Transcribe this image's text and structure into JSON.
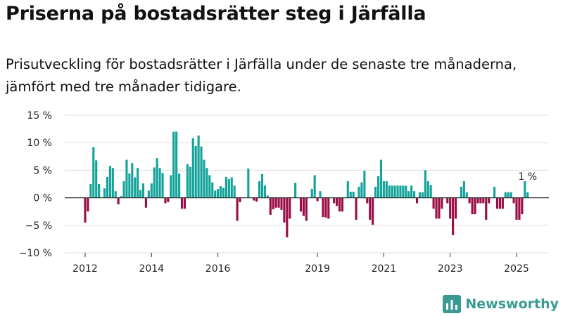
{
  "header": {
    "title": "Priserna på bostadsrätter steg i Järfälla",
    "subtitle": "Prisutveckling för bostadsrätter i Järfälla under de senaste tre månaderna, jämfört med tre månader tidigare."
  },
  "brand": {
    "name": "Newsworthy",
    "color": "#3b9b92",
    "icon": "bar-chart-icon"
  },
  "chart_data": {
    "type": "bar",
    "title": "",
    "xlabel": "",
    "ylabel": "",
    "x_unit": "month",
    "start_month": "2011-11",
    "ylim": [
      -10,
      15
    ],
    "yticks": [
      -10,
      -5,
      0,
      5,
      10,
      15
    ],
    "ytick_labels": [
      "−10 %",
      "−5 %",
      "0 %",
      "5 %",
      "10 %",
      "15 %"
    ],
    "xtick_labels": [
      "2012",
      "2014",
      "2016",
      "2019",
      "2021",
      "2023",
      "2025"
    ],
    "xtick_months": [
      "2012-01",
      "2014-01",
      "2016-01",
      "2019-01",
      "2021-01",
      "2023-01",
      "2025-01"
    ],
    "positive_color": "#14a39a",
    "negative_color": "#9b0d46",
    "grid": true,
    "annotation": {
      "text": "1 %",
      "month": "2025-05",
      "value": 1
    },
    "values": [
      0,
      0,
      -4.5,
      -2.5,
      2.5,
      9.2,
      6.8,
      2.5,
      0,
      1.7,
      3.8,
      5.8,
      5.4,
      1.2,
      -1.2,
      0.3,
      3,
      6.9,
      4.4,
      6.3,
      3.7,
      5.4,
      1.4,
      2.6,
      -1.8,
      1.3,
      2.6,
      5.5,
      7.2,
      5.4,
      4.5,
      -1,
      -0.8,
      4.1,
      12,
      12,
      4.4,
      -2,
      -2,
      6.1,
      5.6,
      10.8,
      9.4,
      11.3,
      9.3,
      6.9,
      5.4,
      4.1,
      2.8,
      1.3,
      1.6,
      2.1,
      1.8,
      3.8,
      3.4,
      3.7,
      2.2,
      -4.2,
      -0.8,
      0,
      0,
      5.3,
      0,
      -0.5,
      -0.7,
      3,
      4.3,
      2.2,
      0.4,
      -3.1,
      -2.1,
      -1.8,
      -1.8,
      -2.2,
      -4.5,
      -7.2,
      -3.8,
      0,
      2.7,
      0,
      -2.5,
      -3.3,
      -4.2,
      0,
      1.6,
      4.1,
      -0.6,
      1.2,
      -3.5,
      -3.6,
      -3.8,
      0,
      -1,
      -1.5,
      -2.5,
      -2.5,
      0,
      3,
      1.1,
      1.1,
      -4,
      2,
      2.8,
      4.9,
      -1,
      -4,
      -4.9,
      2,
      3.9,
      6.9,
      3,
      3,
      2.2,
      2.2,
      2.2,
      2.2,
      2.2,
      2.2,
      2.2,
      1.2,
      2.2,
      1.2,
      -1,
      1,
      1,
      5,
      3,
      2.3,
      -2,
      -3.8,
      -3.8,
      -2,
      0,
      -1,
      -3.8,
      -6.8,
      -3.8,
      0,
      2,
      3,
      1,
      -1,
      -3,
      -3,
      -1,
      -1,
      -1,
      -4,
      -1,
      0,
      2,
      -2,
      -2,
      -2,
      1,
      1,
      1,
      -1,
      -4,
      -4,
      -3,
      3,
      1
    ]
  }
}
